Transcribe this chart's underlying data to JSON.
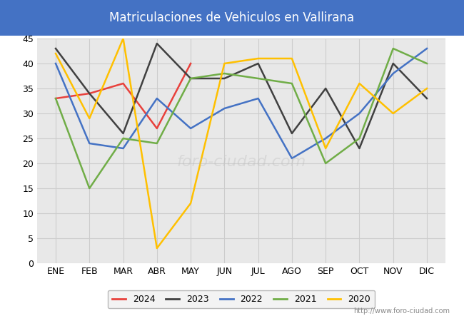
{
  "title": "Matriculaciones de Vehiculos en Vallirana",
  "title_bg_color": "#4472c4",
  "title_text_color": "#ffffff",
  "xlabel": "",
  "ylabel": "",
  "ylim": [
    0,
    45
  ],
  "yticks": [
    0,
    5,
    10,
    15,
    20,
    25,
    30,
    35,
    40,
    45
  ],
  "months": [
    "ENE",
    "FEB",
    "MAR",
    "ABR",
    "MAY",
    "JUN",
    "JUL",
    "AGO",
    "SEP",
    "OCT",
    "NOV",
    "DIC"
  ],
  "series": {
    "2024": {
      "color": "#e8413c",
      "values": [
        33,
        34,
        36,
        27,
        40,
        null,
        null,
        null,
        null,
        null,
        null,
        null
      ]
    },
    "2023": {
      "color": "#404040",
      "values": [
        43,
        34,
        26,
        44,
        37,
        37,
        40,
        26,
        35,
        23,
        40,
        33
      ]
    },
    "2022": {
      "color": "#4472c4",
      "values": [
        40,
        24,
        23,
        33,
        27,
        31,
        33,
        21,
        25,
        30,
        38,
        43
      ]
    },
    "2021": {
      "color": "#70ad47",
      "values": [
        33,
        15,
        25,
        24,
        37,
        38,
        37,
        36,
        20,
        25,
        43,
        40
      ]
    },
    "2020": {
      "color": "#ffc000",
      "values": [
        42,
        29,
        45,
        3,
        12,
        40,
        41,
        41,
        23,
        36,
        30,
        35
      ]
    }
  },
  "legend_order": [
    "2024",
    "2023",
    "2022",
    "2021",
    "2020"
  ],
  "grid_color": "#cccccc",
  "plot_bg_color": "#e8e8e8",
  "fig_bg_color": "#ffffff",
  "watermark": "foro-ciudad.com",
  "url": "http://www.foro-ciudad.com",
  "line_width": 1.8
}
